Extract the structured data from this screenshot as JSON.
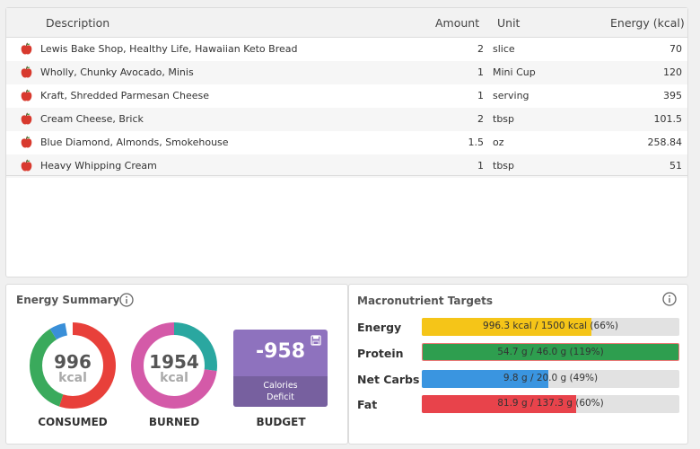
{
  "table": {
    "headers": {
      "description": "Description",
      "amount": "Amount",
      "unit": "Unit",
      "energy": "Energy (kcal)"
    },
    "rows": [
      {
        "description": "Lewis Bake Shop, Healthy Life, Hawaiian Keto Bread",
        "amount": "2",
        "unit": "slice",
        "energy": "70",
        "icon": "apple-icon"
      },
      {
        "description": "Wholly, Chunky Avocado, Minis",
        "amount": "1",
        "unit": "Mini Cup",
        "energy": "120",
        "icon": "apple-icon"
      },
      {
        "description": "Kraft, Shredded Parmesan Cheese",
        "amount": "1",
        "unit": "serving",
        "energy": "395",
        "icon": "apple-icon"
      },
      {
        "description": "Cream Cheese, Brick",
        "amount": "2",
        "unit": "tbsp",
        "energy": "101.5",
        "icon": "apple-icon"
      },
      {
        "description": "Blue Diamond, Almonds, Smokehouse",
        "amount": "1.5",
        "unit": "oz",
        "energy": "258.84",
        "icon": "apple-icon"
      },
      {
        "description": "Heavy Whipping Cream",
        "amount": "1",
        "unit": "tbsp",
        "energy": "51",
        "icon": "apple-icon"
      }
    ]
  },
  "energy_summary": {
    "title": "Energy Summary",
    "consumed": {
      "value": "996",
      "unit": "kcal",
      "label": "CONSUMED"
    },
    "burned": {
      "value": "1954",
      "unit": "kcal",
      "label": "BURNED"
    },
    "budget": {
      "value": "-958",
      "sub_line1": "Calories",
      "sub_line2": "Deficit",
      "label": "BUDGET"
    },
    "colors": {
      "red": "#e8403a",
      "green": "#3aaa5c",
      "blue": "#3a8fd8",
      "teal": "#2aa7a0",
      "pink": "#d45aa8",
      "purple": "#8e72be"
    },
    "consumed_segments": [
      {
        "name": "red",
        "fraction": 0.55
      },
      {
        "name": "green",
        "fraction": 0.36
      },
      {
        "name": "blue",
        "fraction": 0.06
      }
    ],
    "burned_segments": [
      {
        "name": "teal",
        "fraction": 0.27
      },
      {
        "name": "pink",
        "fraction": 0.73
      }
    ]
  },
  "macros": {
    "title": "Macronutrient Targets",
    "items": [
      {
        "label": "Energy",
        "text": "996.3 kcal / 1500 kcal (66%)",
        "fraction": 0.66,
        "color": "#f5c518",
        "over": false
      },
      {
        "label": "Protein",
        "text": "54.7 g / 46.0 g (119%)",
        "fraction": 1.0,
        "color": "#2e9e4f",
        "over": true
      },
      {
        "label": "Net Carbs",
        "text": "9.8 g / 20.0 g (49%)",
        "fraction": 0.49,
        "color": "#3a95e0",
        "over": false
      },
      {
        "label": "Fat",
        "text": "81.9 g / 137.3 g (60%)",
        "fraction": 0.6,
        "color": "#e8434b",
        "over": false
      }
    ]
  }
}
